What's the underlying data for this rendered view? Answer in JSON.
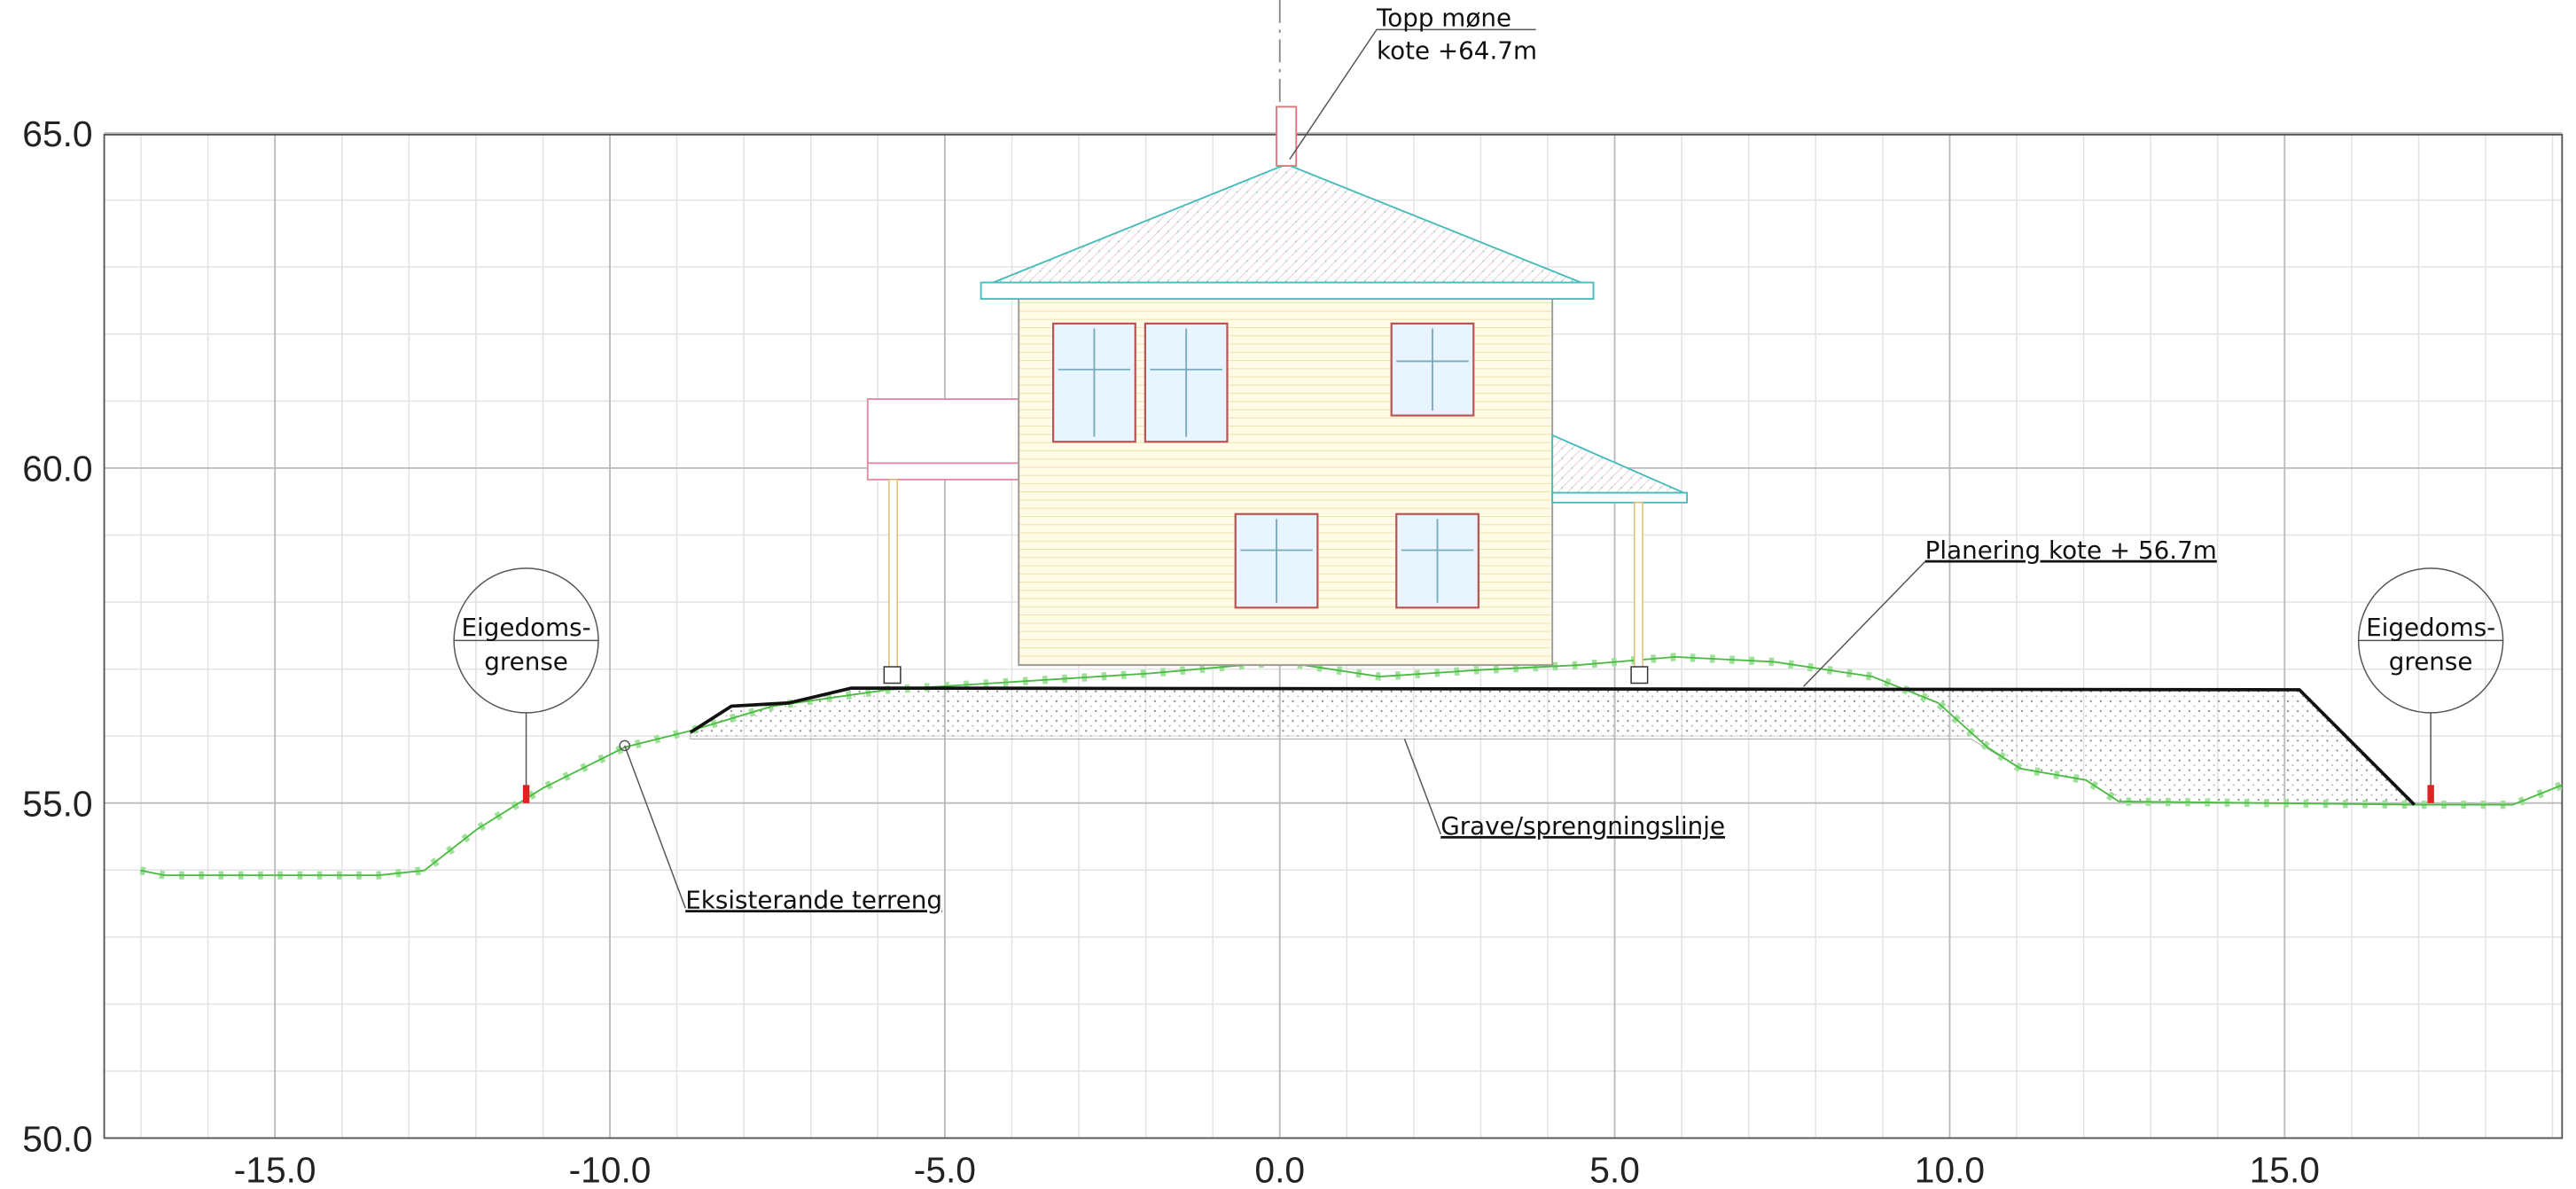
{
  "axes": {
    "xticks": [
      {
        "value": -15,
        "label": "-15.0"
      },
      {
        "value": -10,
        "label": "-10.0"
      },
      {
        "value": -5,
        "label": "-5.0"
      },
      {
        "value": 0,
        "label": "0.0"
      },
      {
        "value": 5,
        "label": "5.0"
      },
      {
        "value": 10,
        "label": "10.0"
      },
      {
        "value": 15,
        "label": "15.0"
      }
    ],
    "yticks": [
      {
        "value": 65,
        "label": "65.0"
      },
      {
        "value": 60,
        "label": "60.0"
      },
      {
        "value": 55,
        "label": "55.0"
      },
      {
        "value": 50,
        "label": "50.0"
      }
    ]
  },
  "annotations": {
    "ridge": [
      "Topp møne",
      "kote +64.7m"
    ],
    "planering": "Planering kote + 56.7m",
    "grave": "Grave/sprengningslinje",
    "terreng": "Eksisterande terreng",
    "boundary_left": [
      "Eigedoms-",
      "grense"
    ],
    "boundary_right": [
      "Eigedoms-",
      "grense"
    ]
  }
}
